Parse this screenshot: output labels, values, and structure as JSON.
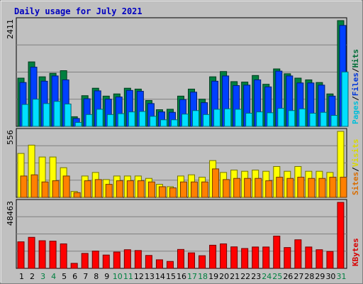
{
  "chart_data": {
    "type": "bar",
    "title": "Daily usage for July 2021",
    "categories": [
      "1",
      "2",
      "3",
      "4",
      "5",
      "6",
      "7",
      "8",
      "9",
      "10",
      "11",
      "12",
      "13",
      "14",
      "15",
      "16",
      "17",
      "18",
      "19",
      "20",
      "21",
      "22",
      "23",
      "24",
      "25",
      "26",
      "27",
      "28",
      "29",
      "30",
      "31"
    ],
    "weekend_days": [
      "3",
      "4",
      "10",
      "11",
      "17",
      "18",
      "24",
      "25",
      "31"
    ],
    "panels": [
      {
        "name": "hits-files-pages",
        "ymax_label": "2411",
        "ylim": [
          0,
          2411
        ],
        "side_labels": [
          "Pages",
          "/",
          "Files",
          "/",
          "Hits"
        ],
        "series": [
          {
            "name": "Hits",
            "color": "#008040",
            "values": [
              1100,
              1470,
              1130,
              1210,
              1270,
              220,
              700,
              870,
              690,
              740,
              870,
              850,
              590,
              380,
              390,
              690,
              850,
              620,
              1130,
              1250,
              1020,
              1010,
              1160,
              960,
              1310,
              1200,
              1100,
              1060,
              1000,
              740,
              2411
            ]
          },
          {
            "name": "Files",
            "color": "#0040ff",
            "values": [
              1000,
              1350,
              1030,
              1150,
              1060,
              180,
              630,
              810,
              620,
              670,
              820,
              800,
              520,
              330,
              320,
              610,
              780,
              540,
              1030,
              1150,
              930,
              940,
              1060,
              900,
              1260,
              1150,
              990,
              990,
              940,
              690,
              2300
            ]
          },
          {
            "name": "Pages",
            "color": "#00e0ff",
            "values": [
              500,
              620,
              520,
              570,
              510,
              90,
              270,
              390,
              270,
              290,
              330,
              340,
              230,
              150,
              150,
              280,
              360,
              270,
              390,
              400,
              390,
              300,
              330,
              310,
              410,
              360,
              400,
              300,
              320,
              250,
              1240
            ]
          }
        ]
      },
      {
        "name": "visits-sites",
        "ymax_label": "556",
        "ylim": [
          0,
          556
        ],
        "side_labels": [
          "Sites",
          "/",
          "Visits"
        ],
        "series": [
          {
            "name": "Visits",
            "color": "#ffff00",
            "values": [
              370,
              440,
              340,
              340,
              250,
              50,
              180,
              210,
              150,
              180,
              180,
              180,
              160,
              110,
              90,
              180,
              190,
              170,
              310,
              210,
              230,
              220,
              230,
              220,
              260,
              220,
              260,
              220,
              220,
              210,
              556
            ]
          },
          {
            "name": "Sites",
            "color": "#ff8000",
            "values": [
              180,
              190,
              130,
              140,
              180,
              40,
              140,
              150,
              110,
              140,
              140,
              140,
              130,
              90,
              80,
              130,
              130,
              130,
              240,
              150,
              160,
              160,
              160,
              140,
              170,
              160,
              170,
              160,
              160,
              170,
              170
            ]
          }
        ]
      },
      {
        "name": "kbytes",
        "ymax_label": "48463",
        "ylim": [
          0,
          48463
        ],
        "side_labels": [
          "KBytes"
        ],
        "series": [
          {
            "name": "KBytes",
            "color": "#ff0000",
            "values": [
              19500,
              22800,
              20300,
              20000,
              18000,
              3700,
              11000,
              12700,
              9800,
              12000,
              13700,
              13100,
              9500,
              6300,
              5100,
              13900,
              11400,
              9300,
              17000,
              18000,
              15800,
              14600,
              15700,
              15700,
              23700,
              15300,
              21000,
              15700,
              13700,
              12400,
              48463
            ]
          }
        ]
      }
    ],
    "colors": {
      "background": "#c0c0c0",
      "plot_area": "#c0c0c0",
      "title": "#0000c0",
      "weekday_label": "#000000",
      "weekend_label": "#008040"
    }
  }
}
